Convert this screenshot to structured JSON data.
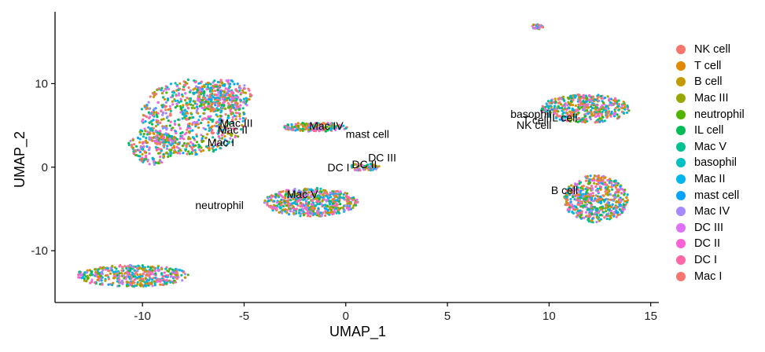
{
  "chart_data": {
    "type": "scatter",
    "title": "",
    "xlabel": "UMAP_1",
    "ylabel": "UMAP_2",
    "xlim": [
      -14.3,
      15.4
    ],
    "ylim": [
      -16.2,
      18.6
    ],
    "xticks": [
      -10,
      -5,
      0,
      5,
      10,
      15
    ],
    "xtick_labels": [
      "-10",
      "-5",
      "0",
      "5",
      "10",
      "15"
    ],
    "yticks": [
      -10,
      0,
      10
    ],
    "ytick_labels": [
      "-10",
      "0",
      "10"
    ],
    "grid": false,
    "legend_position": "right",
    "series": [
      {
        "name": "NK cell",
        "color": "#F8766D"
      },
      {
        "name": "T cell",
        "color": "#E38900"
      },
      {
        "name": "B cell",
        "color": "#C49A00"
      },
      {
        "name": "Mac III",
        "color": "#99A800"
      },
      {
        "name": "neutrophil",
        "color": "#53B400"
      },
      {
        "name": "IL cell",
        "color": "#00BC56"
      },
      {
        "name": "Mac V",
        "color": "#00C094"
      },
      {
        "name": "basophil",
        "color": "#00BFC4"
      },
      {
        "name": "Mac II",
        "color": "#00B6EB"
      },
      {
        "name": "mast cell",
        "color": "#06A4FF"
      },
      {
        "name": "Mac IV",
        "color": "#A58AFF"
      },
      {
        "name": "DC III",
        "color": "#DF70F8"
      },
      {
        "name": "DC II",
        "color": "#FB61D7"
      },
      {
        "name": "DC I",
        "color": "#FF66A8"
      },
      {
        "name": "Mac I",
        "color": "#F8766D"
      }
    ],
    "cluster_labels": [
      {
        "text": "Mac III",
        "x": -6.2,
        "y": 4.8
      },
      {
        "text": "Mac II",
        "x": -6.3,
        "y": 4.0
      },
      {
        "text": "Mac I",
        "x": -6.8,
        "y": 2.5
      },
      {
        "text": "Mac IV",
        "x": -1.8,
        "y": 4.5
      },
      {
        "text": "mast cell",
        "x": 0.0,
        "y": 3.5
      },
      {
        "text": "DC I",
        "x": -0.9,
        "y": -0.5
      },
      {
        "text": "DC II",
        "x": 0.3,
        "y": -0.1
      },
      {
        "text": "DC III",
        "x": 1.1,
        "y": 0.7
      },
      {
        "text": "Mac V",
        "x": -2.9,
        "y": -3.7
      },
      {
        "text": "neutrophil",
        "x": -7.4,
        "y": -5.0
      },
      {
        "text": "basophil",
        "x": 8.1,
        "y": 5.9
      },
      {
        "text": "T cell",
        "x": 8.7,
        "y": 5.2
      },
      {
        "text": "IL cell",
        "x": 10.0,
        "y": 5.5
      },
      {
        "text": "NK cell",
        "x": 8.4,
        "y": 4.6
      },
      {
        "text": "B cell",
        "x": 10.1,
        "y": -3.2
      }
    ],
    "clusters": [
      {
        "cx": -7.5,
        "cy": 6.0,
        "rx": 2.6,
        "ry": 4.5,
        "n": 700
      },
      {
        "cx": -6.0,
        "cy": 8.5,
        "rx": 1.4,
        "ry": 2.0,
        "n": 250
      },
      {
        "cx": -9.5,
        "cy": 2.5,
        "rx": 1.2,
        "ry": 2.2,
        "n": 200
      },
      {
        "cx": -1.5,
        "cy": 4.8,
        "rx": 1.6,
        "ry": 0.55,
        "n": 170
      },
      {
        "cx": -1.7,
        "cy": -4.2,
        "rx": 2.3,
        "ry": 1.7,
        "n": 600
      },
      {
        "cx": 0.9,
        "cy": 0.0,
        "rx": 0.8,
        "ry": 0.45,
        "n": 60
      },
      {
        "cx": 11.8,
        "cy": 7.0,
        "rx": 2.2,
        "ry": 1.7,
        "n": 450
      },
      {
        "cx": 12.3,
        "cy": -3.8,
        "rx": 1.6,
        "ry": 2.8,
        "n": 550
      },
      {
        "cx": 9.4,
        "cy": 16.8,
        "rx": 0.3,
        "ry": 0.3,
        "n": 30
      },
      {
        "cx": -10.5,
        "cy": -13.0,
        "rx": 2.8,
        "ry": 1.3,
        "n": 450
      }
    ]
  }
}
